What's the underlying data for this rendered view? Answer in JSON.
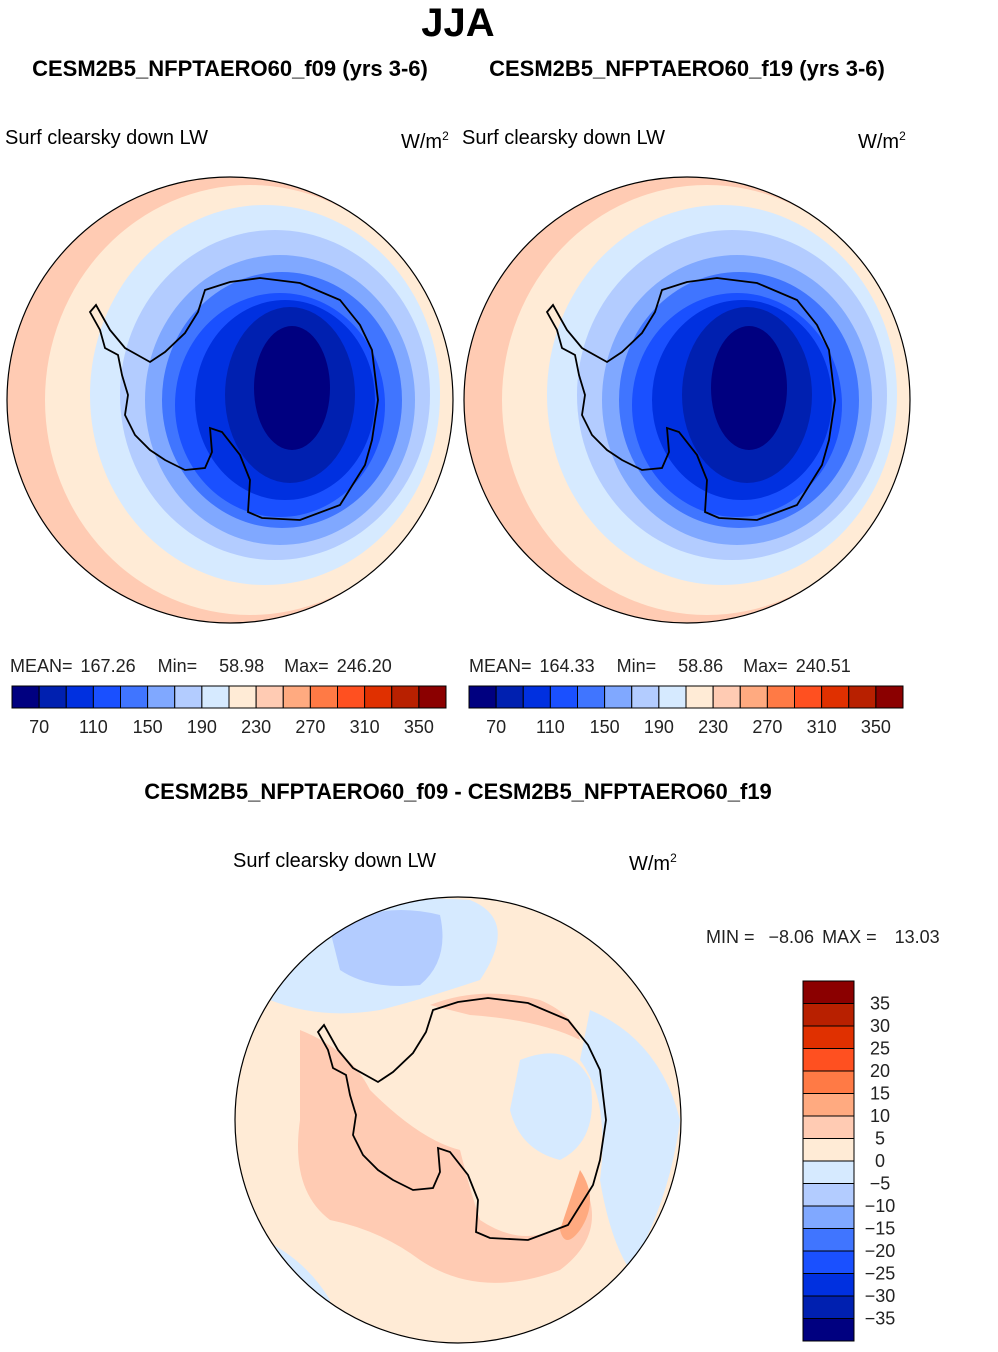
{
  "title": "JJA",
  "panels": [
    {
      "case": "CESM2B5_NFPTAERO60_f09 (yrs 3-6)",
      "variable": "Surf clearsky down LW",
      "units": "W/m",
      "units_sup": "2",
      "mean_label": "MEAN=",
      "mean": "167.26",
      "min_label": "Min=",
      "min": "58.98",
      "max_label": "Max=",
      "max": "246.20"
    },
    {
      "case": "CESM2B5_NFPTAERO60_f19 (yrs 3-6)",
      "variable": "Surf clearsky down LW",
      "units": "W/m",
      "units_sup": "2",
      "mean_label": "MEAN=",
      "mean": "164.33",
      "min_label": "Min=",
      "min": "58.86",
      "max_label": "Max=",
      "max": "240.51"
    }
  ],
  "diff": {
    "title": "CESM2B5_NFPTAERO60_f09 - CESM2B5_NFPTAERO60_f19",
    "variable": "Surf clearsky down LW",
    "units": "W/m",
    "units_sup": "2",
    "min_label": "MIN =",
    "min": "−8.06",
    "max_label": "MAX =",
    "max": "13.03"
  },
  "colors": [
    "#000080",
    "#0020b0",
    "#0030e0",
    "#1a50ff",
    "#4075ff",
    "#80a8ff",
    "#b3ccff",
    "#d6eaff",
    "#ffebd6",
    "#ffcbb3",
    "#ffaa80",
    "#ff7a45",
    "#ff5020",
    "#e03000",
    "#b82000",
    "#8b0000"
  ],
  "colorbar_labels": [
    "70",
    "110",
    "150",
    "190",
    "230",
    "270",
    "310",
    "350"
  ],
  "diff_colorbar_labels": [
    "−35",
    "−30",
    "−25",
    "−20",
    "−15",
    "−10",
    "−5",
    "0",
    "5",
    "10",
    "15",
    "20",
    "25",
    "30",
    "35"
  ]
}
